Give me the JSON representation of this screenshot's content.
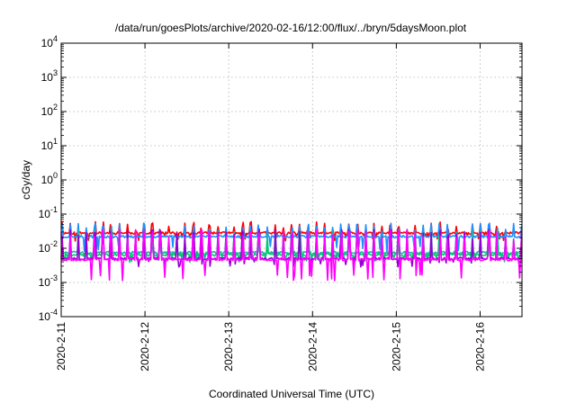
{
  "chart_data": {
    "type": "line",
    "title": "/data/run/goesPlots/archive/2020-02-16/12:00/flux/../bryn/5daysMoon.plot",
    "xlabel": "Coordinated Universal Time (UTC)",
    "ylabel": "cGy/day",
    "y_scale": "log",
    "ylim_exp": [
      -4,
      4
    ],
    "xlim_days": [
      0,
      5.5
    ],
    "grid": true,
    "x_ticks": [
      {
        "label": "2020-2-11",
        "day": 0
      },
      {
        "label": "2020-2-12",
        "day": 1
      },
      {
        "label": "2020-2-13",
        "day": 2
      },
      {
        "label": "2020-2-14",
        "day": 3
      },
      {
        "label": "2020-2-15",
        "day": 4
      },
      {
        "label": "2020-2-16",
        "day": 5
      }
    ],
    "y_ticks": [
      {
        "base": "10",
        "exp": "4",
        "value": 4
      },
      {
        "base": "10",
        "exp": "3",
        "value": 3
      },
      {
        "base": "10",
        "exp": "2",
        "value": 2
      },
      {
        "base": "10",
        "exp": "1",
        "value": 1
      },
      {
        "base": "10",
        "exp": "0",
        "value": 0
      },
      {
        "base": "10",
        "exp": "-1",
        "value": -1
      },
      {
        "base": "10",
        "exp": "-2",
        "value": -2
      },
      {
        "base": "10",
        "exp": "-3",
        "value": -3
      },
      {
        "base": "10",
        "exp": "-4",
        "value": -4
      }
    ],
    "series": [
      {
        "color": "#ff0000",
        "base": 0.028,
        "spike": 0.05,
        "low": 0.02,
        "period": 0.098,
        "seed": 11
      },
      {
        "color": "#1e90ff",
        "base": 0.022,
        "spike": 0.045,
        "low": 0.01,
        "period": 0.098,
        "seed": 23
      },
      {
        "color": "#20b2aa",
        "base": 0.0075,
        "spike": 0.03,
        "low": 0.005,
        "period": 0.098,
        "seed": 37
      },
      {
        "color": "#00cc66",
        "base": 0.0065,
        "spike": 0.02,
        "low": 0.0045,
        "period": 0.098,
        "seed": 41
      },
      {
        "color": "#9400d3",
        "base": 0.005,
        "spike": 0.03,
        "low": 0.0035,
        "period": 0.098,
        "seed": 53
      },
      {
        "color": "#ff00ff",
        "base": 0.0047,
        "spike": 0.03,
        "low": 0.0014,
        "period": 0.098,
        "seed": 67
      }
    ]
  }
}
